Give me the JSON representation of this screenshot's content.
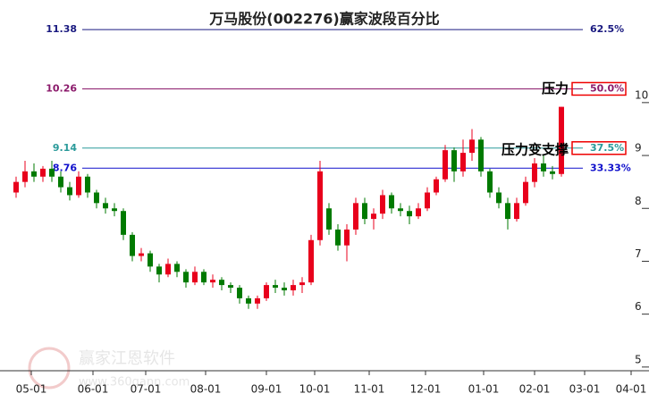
{
  "chart_data": {
    "type": "candlestick",
    "title": "万马股份(002276)赢家波段百分比",
    "watermark": "赢家江恩软件",
    "watermark_url": "www.360gann.com",
    "up_color": "#e8001c",
    "down_color": "#007a00",
    "ylim": [
      4.93,
      11.94
    ],
    "yticks": [
      5,
      6,
      7,
      8,
      9,
      10
    ],
    "xlim": [
      -1.8,
      70.8
    ],
    "xticks": [
      {
        "value": 1.7,
        "label": "05-01"
      },
      {
        "value": 8.6,
        "label": "06-01"
      },
      {
        "value": 14.5,
        "label": "07-01"
      },
      {
        "value": 21.2,
        "label": "08-01"
      },
      {
        "value": 28,
        "label": "09-01"
      },
      {
        "value": 33.4,
        "label": "10-01"
      },
      {
        "value": 39.5,
        "label": "11-01"
      },
      {
        "value": 45.8,
        "label": "12-01"
      },
      {
        "value": 52.3,
        "label": "01-01"
      },
      {
        "value": 58,
        "label": "02-01"
      },
      {
        "value": 63.6,
        "label": "03-01"
      },
      {
        "value": 68.8,
        "label": "04-01"
      }
    ],
    "open": [
      8.3,
      8.5,
      8.7,
      8.6,
      8.75,
      8.6,
      8.4,
      8.25,
      8.6,
      8.3,
      8.1,
      8.0,
      7.95,
      7.5,
      7.1,
      7.15,
      6.9,
      6.75,
      6.95,
      6.8,
      6.6,
      6.8,
      6.6,
      6.65,
      6.55,
      6.5,
      6.3,
      6.2,
      6.3,
      6.55,
      6.5,
      6.45,
      6.55,
      6.6,
      7.4,
      8.0,
      7.6,
      7.3,
      7.6,
      8.1,
      7.8,
      7.9,
      8.25,
      8.0,
      7.95,
      7.85,
      8.0,
      8.3,
      8.55,
      9.1,
      8.7,
      9.05,
      9.3,
      8.7,
      8.3,
      8.1,
      7.8,
      8.1,
      8.5,
      8.85,
      8.7,
      8.65
    ],
    "close": [
      8.5,
      8.7,
      8.6,
      8.75,
      8.6,
      8.4,
      8.25,
      8.6,
      8.3,
      8.1,
      8.0,
      7.95,
      7.5,
      7.1,
      7.15,
      6.9,
      6.75,
      6.95,
      6.8,
      6.6,
      6.8,
      6.6,
      6.65,
      6.55,
      6.5,
      6.3,
      6.2,
      6.3,
      6.55,
      6.5,
      6.45,
      6.55,
      6.6,
      7.4,
      8.7,
      7.6,
      7.3,
      7.6,
      8.1,
      7.8,
      7.9,
      8.25,
      8.0,
      7.95,
      7.85,
      8.0,
      8.3,
      8.55,
      9.1,
      8.7,
      9.05,
      9.3,
      8.7,
      8.3,
      8.1,
      7.8,
      8.1,
      8.5,
      8.85,
      8.7,
      8.65,
      9.92
    ],
    "high": [
      8.6,
      8.9,
      8.85,
      8.8,
      8.9,
      8.7,
      8.5,
      8.7,
      8.65,
      8.35,
      8.2,
      8.1,
      8.0,
      7.55,
      7.25,
      7.2,
      6.95,
      7.05,
      7.0,
      6.85,
      6.9,
      6.85,
      6.75,
      6.7,
      6.6,
      6.55,
      6.35,
      6.35,
      6.6,
      6.65,
      6.6,
      6.65,
      6.7,
      7.5,
      8.9,
      8.1,
      7.7,
      7.7,
      8.2,
      8.2,
      8.0,
      8.35,
      8.3,
      8.1,
      8.05,
      8.1,
      8.4,
      8.6,
      9.2,
      9.15,
      9.3,
      9.5,
      9.35,
      8.75,
      8.4,
      8.2,
      8.2,
      8.6,
      8.95,
      9.0,
      8.8,
      9.92
    ],
    "low": [
      8.2,
      8.4,
      8.5,
      8.5,
      8.5,
      8.3,
      8.15,
      8.2,
      8.2,
      8.0,
      7.9,
      7.85,
      7.4,
      7.0,
      7.0,
      6.8,
      6.6,
      6.7,
      6.7,
      6.5,
      6.55,
      6.55,
      6.5,
      6.45,
      6.4,
      6.2,
      6.1,
      6.1,
      6.25,
      6.4,
      6.35,
      6.35,
      6.4,
      6.55,
      7.3,
      7.5,
      7.2,
      7.0,
      7.5,
      7.7,
      7.6,
      7.8,
      7.9,
      7.85,
      7.7,
      7.8,
      7.95,
      8.25,
      8.5,
      8.5,
      8.6,
      8.9,
      8.6,
      8.2,
      8.0,
      7.6,
      7.75,
      8.05,
      8.4,
      8.6,
      8.55,
      8.6
    ],
    "levels": [
      {
        "value": 11.38,
        "label": "62.5%",
        "color": "#1a1a80",
        "boxed": false
      },
      {
        "value": 10.26,
        "label": "50.0%",
        "color": "#8b1a6b",
        "boxed": true
      },
      {
        "value": 9.14,
        "label": "37.5%",
        "color": "#2a9a9a",
        "boxed": true
      },
      {
        "value": 8.76,
        "label": "33.33%",
        "color": "#1010cc",
        "boxed": false
      }
    ],
    "annotations": [
      {
        "text": "压力",
        "level": 1
      },
      {
        "text": "压力变支撑",
        "level": 2
      }
    ]
  }
}
